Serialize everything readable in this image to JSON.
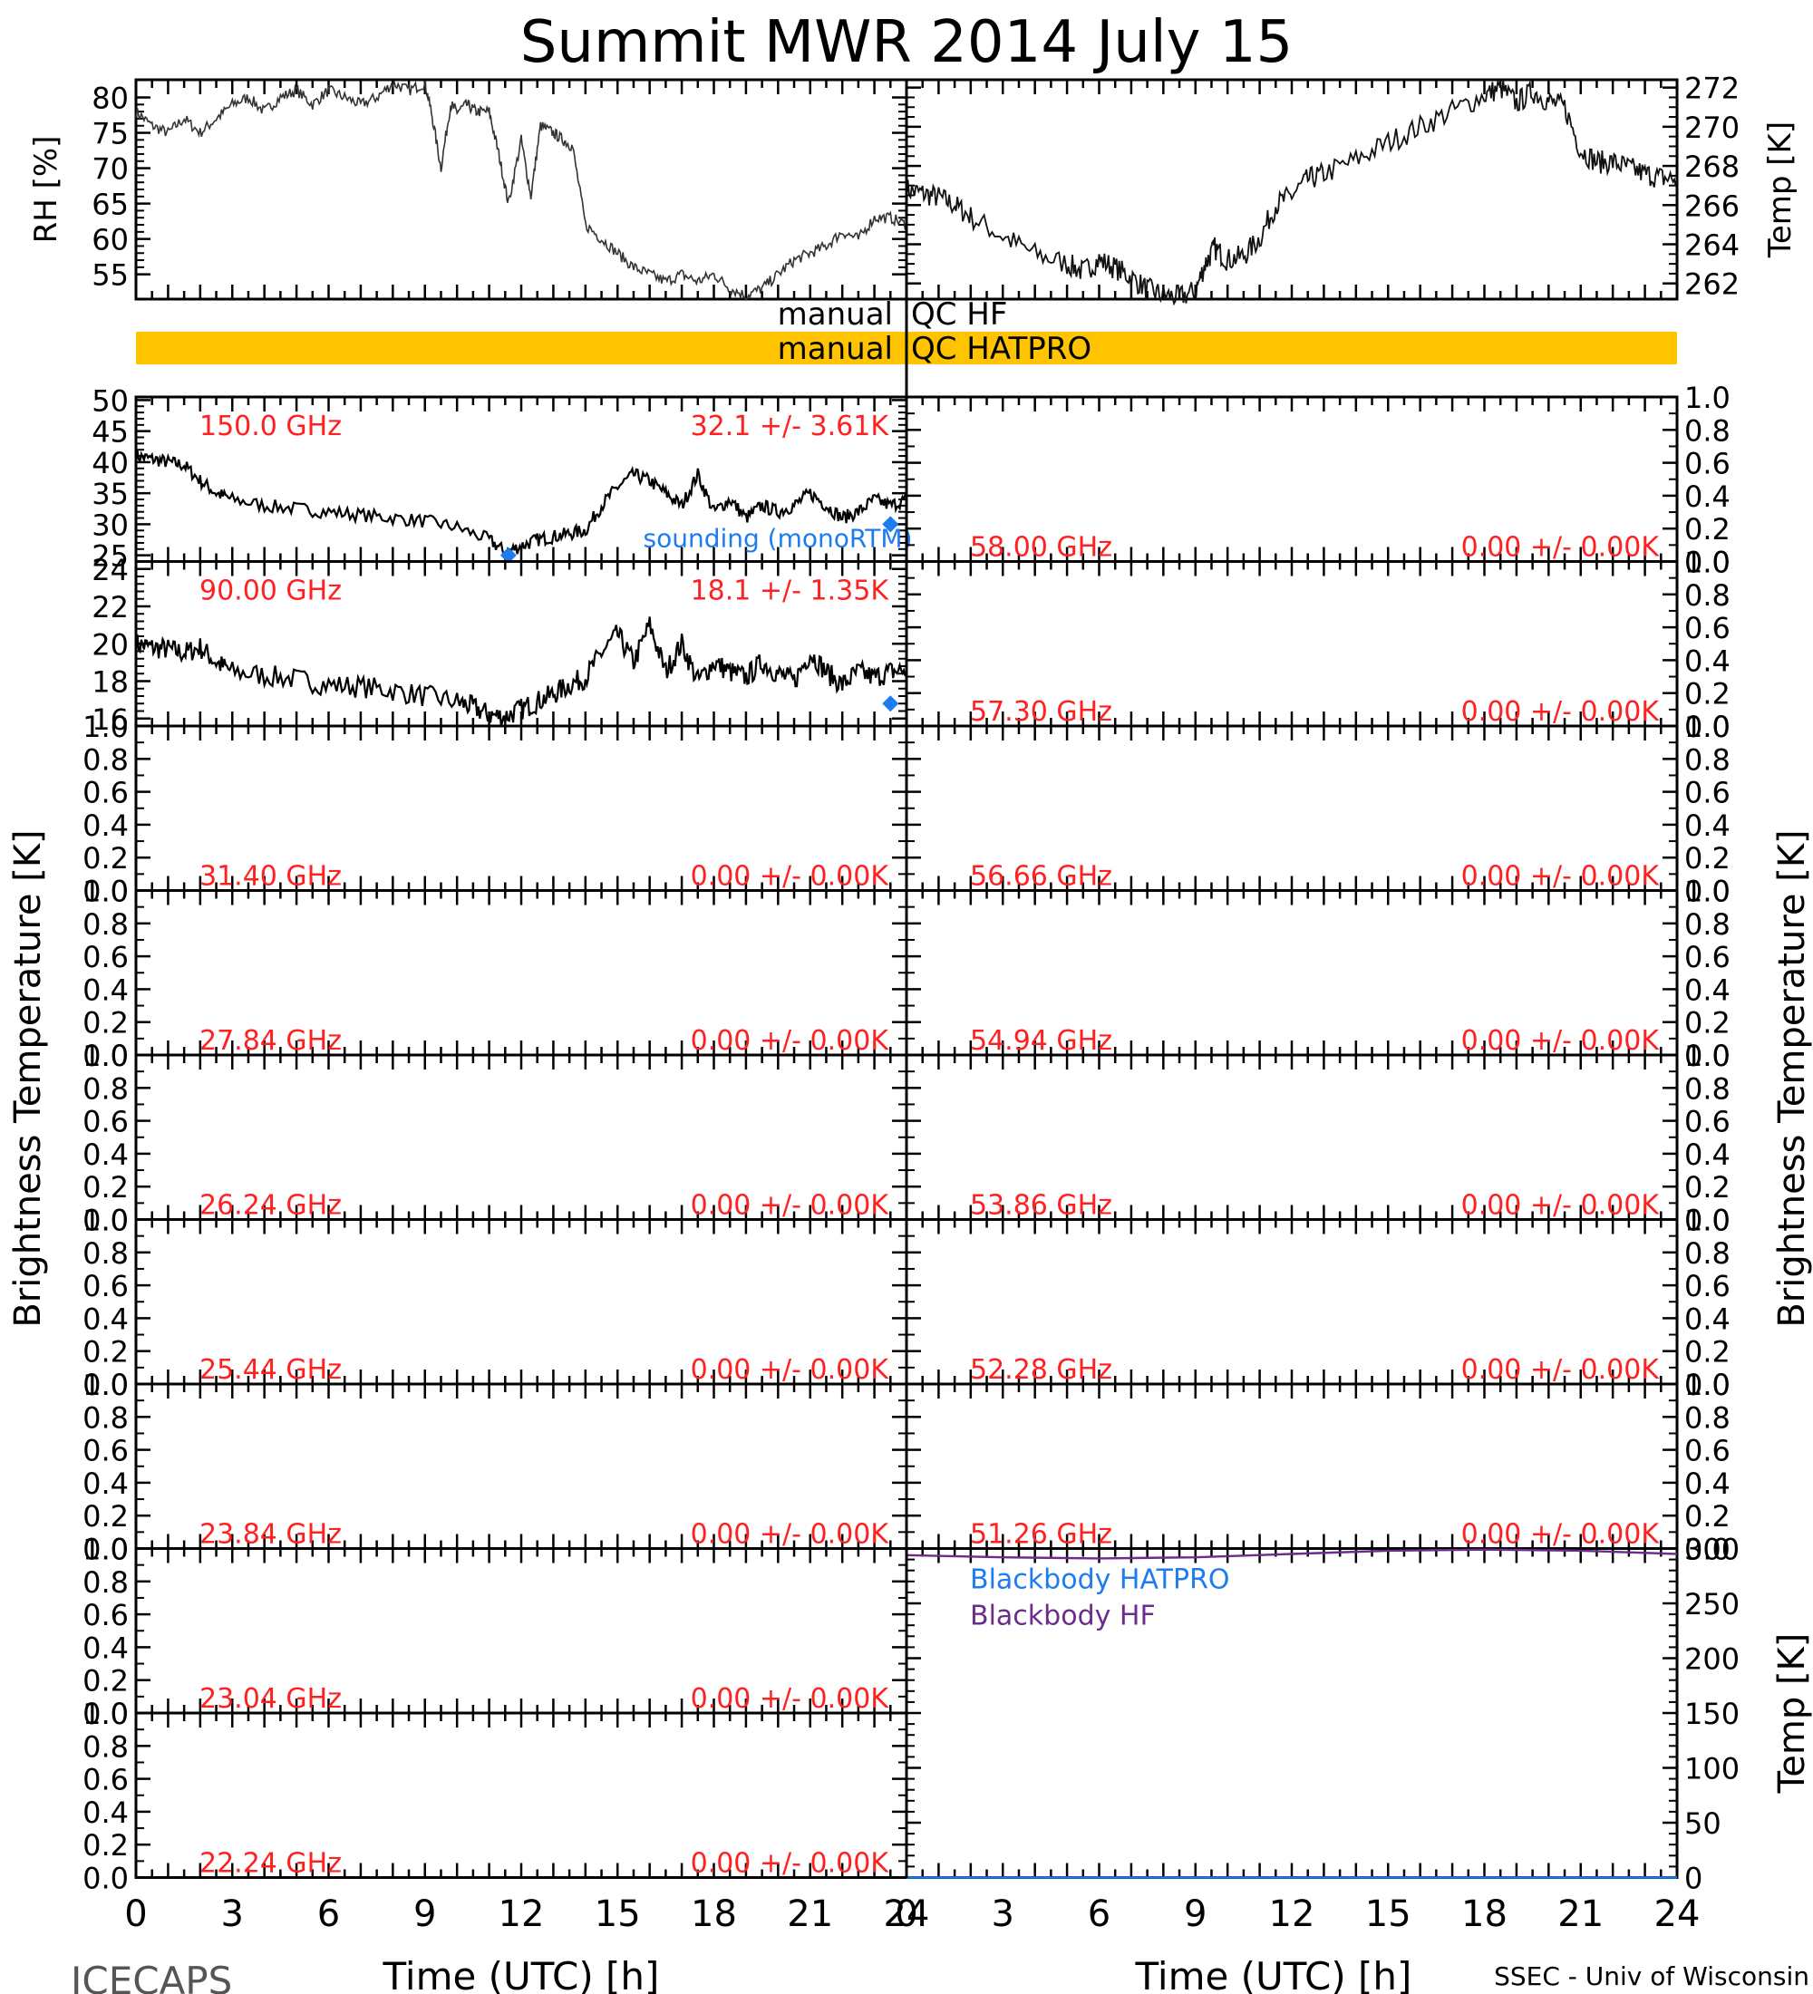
{
  "title": "Summit MWR 2014 July 15",
  "footer": {
    "left": "ICECAPS",
    "right": "SSEC - Univ of Wisconsin"
  },
  "brightness_axis_label": "Brightness Temperature [K]",
  "qc": {
    "hf_left": "manual",
    "hf_right": "QC HF",
    "hatpro_left": "manual",
    "hatpro_right": "QC HATPRO"
  },
  "colors": {
    "qc_bar": "#FFC300",
    "channel_label": "#FF2020",
    "sounding": "#1E7CF0",
    "bb_hatpro": "#1E7CF0",
    "bb_hf": "#6B2C8C",
    "trace": "#000000"
  },
  "chart_data": [
    {
      "id": "rh",
      "type": "line",
      "ylabel": "RH [%]",
      "yticks": [
        55,
        60,
        65,
        70,
        75,
        80
      ],
      "ylim": [
        51.5,
        82.5
      ],
      "x_hours": [
        0,
        0.5,
        1,
        1.5,
        2,
        2.5,
        3,
        3.5,
        4,
        4.5,
        5,
        5.5,
        6,
        6.5,
        7,
        7.5,
        8,
        8.5,
        9,
        9.2,
        9.5,
        9.8,
        10,
        10.3,
        10.6,
        11,
        11.3,
        11.6,
        12,
        12.3,
        12.6,
        13,
        13.3,
        13.6,
        14,
        14.5,
        15,
        15.5,
        16,
        16.5,
        17,
        17.5,
        18,
        18.5,
        19,
        19.5,
        20,
        20.5,
        21,
        21.5,
        22,
        22.5,
        23,
        23.5,
        24
      ],
      "values": [
        78,
        76,
        75,
        77,
        75,
        77,
        79,
        80,
        78,
        80,
        81,
        79,
        81,
        80,
        79,
        80,
        82,
        81,
        82,
        78,
        70,
        79,
        78,
        79,
        78,
        78,
        72,
        65,
        74,
        66,
        76,
        75,
        74,
        73,
        62,
        60,
        58,
        56,
        55,
        54,
        55,
        54,
        55,
        53,
        52,
        53,
        55,
        57,
        58,
        59,
        61,
        60,
        63,
        63,
        62
      ]
    },
    {
      "id": "temp",
      "type": "line",
      "ylabel": "Temp [K]",
      "yticks": [
        262,
        264,
        266,
        268,
        270,
        272
      ],
      "ylim": [
        261.2,
        272.4
      ],
      "x_hours": [
        0,
        0.5,
        1,
        1.5,
        2,
        3,
        4,
        5,
        5.5,
        6,
        6.5,
        7,
        7.5,
        8,
        8.5,
        9,
        9.3,
        9.6,
        10,
        10.5,
        11,
        11.5,
        12,
        12.5,
        13,
        14,
        15,
        16,
        17,
        18,
        18.5,
        19,
        19.5,
        20,
        20.5,
        21,
        21.5,
        22,
        22.5,
        23,
        23.5,
        24
      ],
      "values": [
        266.8,
        266.6,
        266.4,
        266.0,
        265.4,
        264.4,
        263.5,
        263.0,
        262.6,
        263.2,
        262.8,
        262.3,
        261.7,
        261.4,
        261.3,
        261.6,
        263.0,
        263.8,
        263.2,
        263.4,
        264.3,
        266.0,
        266.5,
        267.3,
        267.6,
        268.3,
        269.2,
        270.0,
        270.8,
        271.6,
        272.0,
        271.2,
        271.8,
        271.3,
        271.0,
        268.8,
        268.2,
        268.2,
        267.9,
        267.6,
        267.4,
        267.3
      ]
    },
    {
      "id": "tb150",
      "type": "line",
      "freq_label": "150.0 GHz",
      "stats_label": "32.1 +/- 3.61K",
      "yticks": [
        25,
        30,
        35,
        40,
        45,
        50
      ],
      "ylim": [
        24,
        50.5
      ],
      "x_hours": [
        0,
        0.5,
        1,
        1.5,
        2,
        2.5,
        3,
        4,
        5,
        6,
        7,
        8,
        9,
        10,
        11,
        11.5,
        12,
        12.5,
        13,
        13.5,
        14,
        14.5,
        15,
        15.5,
        16,
        16.5,
        17,
        17.5,
        18,
        18.5,
        19,
        19.5,
        20,
        20.5,
        21,
        21.5,
        22,
        22.5,
        23,
        23.5,
        24
      ],
      "values": [
        41,
        40.5,
        40,
        39.5,
        37,
        35,
        34,
        33,
        32.5,
        32,
        31.5,
        31,
        30.5,
        29.5,
        27.5,
        25.5,
        26.5,
        27.5,
        28,
        28.5,
        29,
        33,
        36,
        38,
        37,
        35,
        33,
        38,
        32,
        34,
        31,
        33,
        32,
        33,
        35,
        33,
        31,
        32,
        34,
        33,
        34
      ],
      "sounding": {
        "label": "sounding (monoRTM)",
        "x_hours": [
          11.6,
          23.5
        ],
        "values": [
          25,
          30
        ]
      }
    },
    {
      "id": "tb90",
      "type": "line",
      "freq_label": "90.00 GHz",
      "stats_label": "18.1 +/- 1.35K",
      "yticks": [
        16,
        18,
        20,
        22,
        24
      ],
      "ylim": [
        15.6,
        24.4
      ],
      "x_hours": [
        0,
        0.5,
        1,
        1.5,
        2,
        2.5,
        3,
        4,
        5,
        6,
        7,
        8,
        9,
        10,
        10.5,
        11,
        11.5,
        12,
        12.5,
        13,
        13.5,
        14,
        14.5,
        15,
        15.5,
        16,
        16.5,
        17,
        17.5,
        18,
        18.5,
        19,
        19.5,
        20,
        20.5,
        21,
        21.5,
        22,
        22.5,
        23,
        23.5,
        24
      ],
      "values": [
        20,
        19.8,
        19.7,
        19.5,
        19.8,
        19,
        18.5,
        18.3,
        18.1,
        17.8,
        17.7,
        17.5,
        17.2,
        16.9,
        16.6,
        16.2,
        16.1,
        16.5,
        16.9,
        17.3,
        17.8,
        18.2,
        19.5,
        20.5,
        19,
        21,
        18.5,
        20,
        18,
        19,
        18.5,
        18.2,
        19,
        18.4,
        18,
        19.5,
        18.5,
        17.8,
        18.5,
        18.2,
        18.5,
        18.6
      ],
      "sounding": {
        "x_hours": [
          23.5
        ],
        "values": [
          16.8
        ]
      }
    },
    {
      "id": "p31",
      "freq_label": "31.40 GHz",
      "stats_label": "0.00 +/- 0.00K"
    },
    {
      "id": "p27",
      "freq_label": "27.84 GHz",
      "stats_label": "0.00 +/- 0.00K"
    },
    {
      "id": "p26",
      "freq_label": "26.24 GHz",
      "stats_label": "0.00 +/- 0.00K"
    },
    {
      "id": "p25",
      "freq_label": "25.44 GHz",
      "stats_label": "0.00 +/- 0.00K"
    },
    {
      "id": "p23a",
      "freq_label": "23.84 GHz",
      "stats_label": "0.00 +/- 0.00K"
    },
    {
      "id": "p23b",
      "freq_label": "23.04 GHz",
      "stats_label": "0.00 +/- 0.00K"
    },
    {
      "id": "p22",
      "freq_label": "22.24 GHz",
      "stats_label": "0.00 +/- 0.00K"
    },
    {
      "id": "p58",
      "freq_label": "58.00 GHz",
      "stats_label": "0.00 +/- 0.00K"
    },
    {
      "id": "p57",
      "freq_label": "57.30 GHz",
      "stats_label": "0.00 +/- 0.00K"
    },
    {
      "id": "p56",
      "freq_label": "56.66 GHz",
      "stats_label": "0.00 +/- 0.00K"
    },
    {
      "id": "p54",
      "freq_label": "54.94 GHz",
      "stats_label": "0.00 +/- 0.00K"
    },
    {
      "id": "p53",
      "freq_label": "53.86 GHz",
      "stats_label": "0.00 +/- 0.00K"
    },
    {
      "id": "p52",
      "freq_label": "52.28 GHz",
      "stats_label": "0.00 +/- 0.00K"
    },
    {
      "id": "p51",
      "freq_label": "51.26 GHz",
      "stats_label": "0.00 +/- 0.00K"
    },
    {
      "id": "blackbody",
      "type": "line",
      "ylabel": "Temp [K]",
      "yticks": [
        0,
        50,
        100,
        150,
        200,
        250,
        300
      ],
      "ylim": [
        0,
        300
      ],
      "series": [
        {
          "name": "Blackbody HATPRO",
          "x_hours": [
            0,
            24
          ],
          "values": [
            0,
            0
          ]
        },
        {
          "name": "Blackbody HF",
          "x_hours": [
            0,
            3,
            6,
            9,
            12,
            15,
            18,
            21,
            24
          ],
          "values": [
            294,
            292,
            291,
            292,
            295,
            298,
            299,
            298,
            295
          ]
        }
      ]
    }
  ],
  "empty_yticks": [
    "0.0",
    "0.2",
    "0.4",
    "0.6",
    "0.8",
    "1.0"
  ],
  "xaxis": {
    "label": "Time (UTC) [h]",
    "ticks": [
      "0",
      "3",
      "6",
      "9",
      "12",
      "15",
      "18",
      "21",
      "24"
    ]
  }
}
